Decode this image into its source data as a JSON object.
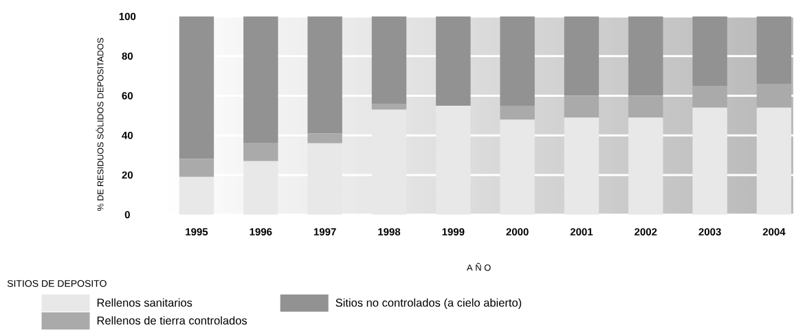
{
  "chart_data": {
    "type": "bar",
    "stacked": true,
    "ylabel": "% DE RESIDUOS SÓLIDOS DEPOSITADOS",
    "xlabel": "A Ñ O",
    "legend_title": "SITIOS DE DEPOSITO",
    "categories": [
      "1995",
      "1996",
      "1997",
      "1998",
      "1999",
      "2000",
      "2001",
      "2002",
      "2003",
      "2004"
    ],
    "series": [
      {
        "name": "Rellenos sanitarios",
        "color": "#e8e8e8",
        "values": [
          19,
          27,
          36,
          53,
          55,
          48,
          49,
          49,
          54,
          54
        ]
      },
      {
        "name": "Rellenos de tierra controlados",
        "color": "#aaaaaa",
        "values": [
          9,
          9,
          5,
          3,
          0,
          7,
          11,
          11,
          11,
          12
        ]
      },
      {
        "name": "Sitios no controlados (a cielo abierto)",
        "color": "#929292",
        "values": [
          72,
          64,
          59,
          44,
          45,
          45,
          40,
          40,
          35,
          34
        ]
      }
    ],
    "ylim": [
      0,
      100
    ],
    "yticks": [
      0,
      20,
      40,
      60,
      80,
      100
    ],
    "grid": "y",
    "legend": "bottom left"
  }
}
